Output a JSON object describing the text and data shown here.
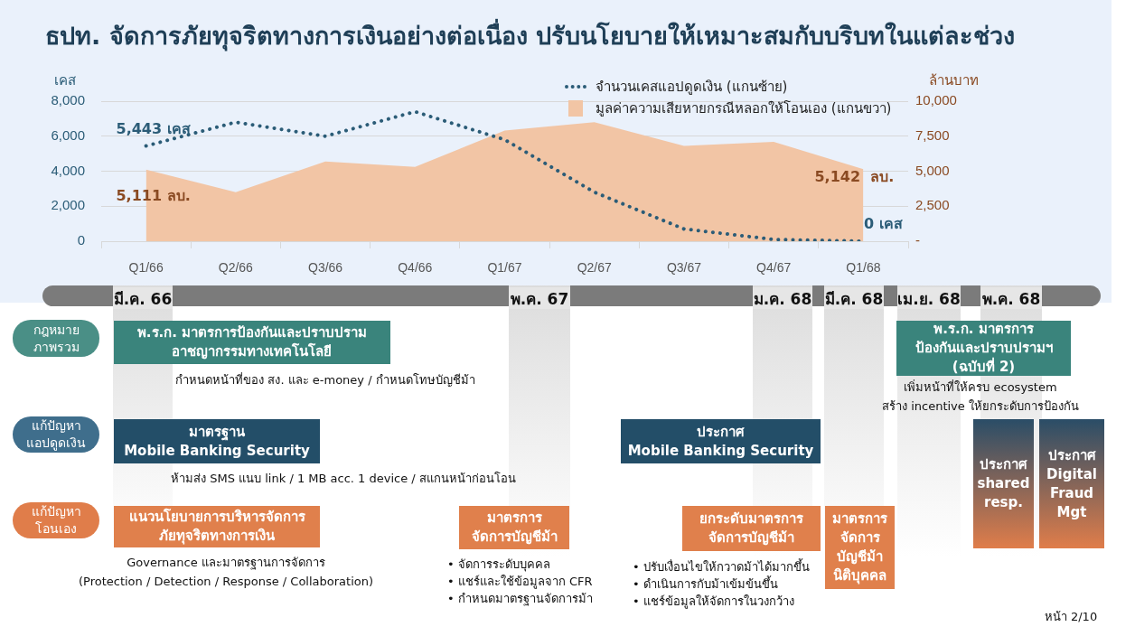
{
  "chart_data": {
    "type": "line",
    "title": "ธปท. จัดการภัยทุจริตทางการเงินอย่างต่อเนื่อง ปรับนโยบายให้เหมาะสมกับบริบทในแต่ละช่วง",
    "ylabel": "เคส",
    "y2label": "ล้านบาท",
    "categories": [
      "Q1/66",
      "Q2/66",
      "Q3/66",
      "Q4/66",
      "Q1/67",
      "Q2/67",
      "Q3/67",
      "Q4/67",
      "Q1/68"
    ],
    "series": [
      {
        "name": "จำนวนเคสแอปดูดเงิน (แกนซ้าย)",
        "type": "line",
        "color": "#2b5c77",
        "line_style": "dotted",
        "marker": "none",
        "values": [
          5443,
          6800,
          6000,
          7400,
          5800,
          2800,
          700,
          100,
          0
        ],
        "value_labels": [
          "5,443 เคส",
          null,
          null,
          null,
          null,
          null,
          null,
          null,
          "0 เคส"
        ]
      },
      {
        "name": "มูลค่าความเสียหายกรณีหลอกให้โอนเอง (แกนขวา)",
        "type": "area",
        "axis": "y2",
        "color": "#f2c5a5",
        "values": [
          5111,
          3500,
          5700,
          5300,
          7900,
          8500,
          6800,
          7100,
          5142
        ],
        "value_labels": [
          "5,111 ลบ.",
          null,
          null,
          null,
          null,
          null,
          null,
          null,
          "5,142  ลบ."
        ]
      }
    ],
    "ylim": [
      0,
      8000
    ],
    "yticks": [
      0,
      {
        "value": 2000,
        "label": "2,000"
      },
      {
        "value": 4000,
        "label": "4,000"
      },
      {
        "value": 6000,
        "label": "6,000"
      },
      {
        "value": 8000,
        "label": "8,000"
      }
    ],
    "y2lim": [
      0,
      10000
    ],
    "y2ticks": [
      {
        "value": 0,
        "label": "-"
      },
      {
        "value": 2500,
        "label": "2,500"
      },
      {
        "value": 5000,
        "label": "5,000"
      },
      {
        "value": 7500,
        "label": "7,500"
      },
      {
        "value": 10000,
        "label": "10,000"
      }
    ],
    "grid": "y",
    "legend": "top right",
    "annotations": [
      "มี.ค. 66",
      "พ.ค. 67",
      "ม.ค. 68",
      "มี.ค. 68",
      "เม.ย. 68",
      "พ.ค. 68",
      "กฎหมาย\nภาพรวม",
      "แก้ปัญหา\nแอปดูดเงิน",
      "แก้ปัญหา\nโอนเอง",
      "พ.ร.ก. มาตรการป้องกันและปราบปราม\nอาชญากรรมทางเทคโนโลยี",
      "กำหนดหน้าที่ของ สง. และ e-money / กำหนดโทษบัญชีม้า",
      "พ.ร.ก. มาตรการ\nป้องกันและปราบปรามฯ\n(ฉบับที่ 2)",
      "เพิ่มหน้าที่ให้ครบ ecosystem\nสร้าง incentive ให้ยกระดับการป้องกัน",
      "มาตรฐาน\nMobile Banking Security",
      "ห้ามส่ง SMS แนบ link / 1 MB acc. 1 device / สแกนหน้าก่อนโอน",
      "ประกาศ\nMobile Banking Security",
      "ประกาศ\nshared\nresp.",
      "ประกาศ\nDigital\nFraud\nMgt",
      "แนวนโยบายการบริหารจัดการ\nภัยทุจริตทางการเงิน",
      "Governance และมาตรฐานการจัดการ\n(Protection / Detection / Response / Collaboration)",
      "มาตรการ\nจัดการบัญชีม้า",
      "• จัดการระดับบุคคล\n• แชร์และใช้ข้อมูลจาก CFR\n• กำหนดมาตรฐานจัดการม้า",
      "ยกระดับมาตรการ\nจัดการบัญชีม้า",
      "• ปรับเงื่อนไขให้กวาดม้าได้มากขึ้น\n• ดำเนินการกับม้าเข้มข้นขึ้น\n• แชร์ข้อมูลให้จัดการในวงกว้าง",
      "มาตรการ\nจัดการ\nบัญชีม้า\nนิติบุคคล",
      "หน้า 2/10"
    ]
  }
}
